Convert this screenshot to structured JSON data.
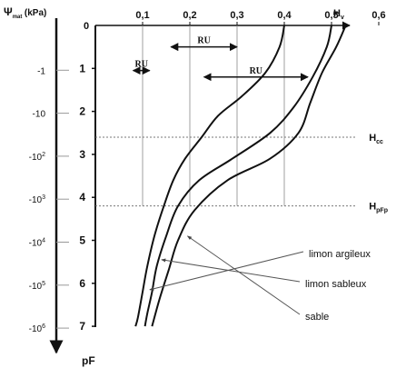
{
  "chart_data": {
    "type": "line",
    "x_axis": {
      "label": "H",
      "label_sub": "v",
      "range": [
        0,
        0.6
      ],
      "ticks": [
        {
          "value": 0.1,
          "label": "0,1"
        },
        {
          "value": 0.2,
          "label": "0,2"
        },
        {
          "value": 0.3,
          "label": "0,3"
        },
        {
          "value": 0.4,
          "label": "0,4"
        },
        {
          "value": 0.5,
          "label": "0,5"
        },
        {
          "value": 0.6,
          "label": "0,6"
        }
      ]
    },
    "y_axis_pf": {
      "label": "pF",
      "origin_label": "0",
      "range": [
        0,
        7
      ],
      "ticks": [
        {
          "value": 1,
          "label": "1"
        },
        {
          "value": 2,
          "label": "2"
        },
        {
          "value": 3,
          "label": "3"
        },
        {
          "value": 4,
          "label": "4"
        },
        {
          "value": 5,
          "label": "5"
        },
        {
          "value": 6,
          "label": "6"
        },
        {
          "value": 7,
          "label": "7"
        }
      ]
    },
    "y_axis_psi": {
      "label_symbol": "Ψ",
      "label_sub": "mat",
      "label_unit": "(kPa)",
      "ticks": [
        {
          "pf": 1,
          "base": "-1",
          "exp": ""
        },
        {
          "pf": 2,
          "base": "-10",
          "exp": ""
        },
        {
          "pf": 3,
          "base": "-10",
          "exp": "2"
        },
        {
          "pf": 4,
          "base": "-10",
          "exp": "3"
        },
        {
          "pf": 5,
          "base": "-10",
          "exp": "4"
        },
        {
          "pf": 6,
          "base": "-10",
          "exp": "5"
        },
        {
          "pf": 7,
          "base": "-10",
          "exp": "6"
        }
      ]
    },
    "series": [
      {
        "name": "limon argileux",
        "points": [
          [
            0.4,
            0.0
          ],
          [
            0.39,
            0.5
          ],
          [
            0.36,
            1.1
          ],
          [
            0.31,
            1.65
          ],
          [
            0.26,
            2.1
          ],
          [
            0.225,
            2.6
          ],
          [
            0.19,
            3.1
          ],
          [
            0.165,
            3.6
          ],
          [
            0.145,
            4.2
          ],
          [
            0.125,
            4.9
          ],
          [
            0.11,
            5.6
          ],
          [
            0.1,
            6.2
          ],
          [
            0.09,
            6.8
          ],
          [
            0.085,
            7.0
          ]
        ]
      },
      {
        "name": "limon sableux",
        "points": [
          [
            0.5,
            0.0
          ],
          [
            0.49,
            0.5
          ],
          [
            0.46,
            1.2
          ],
          [
            0.42,
            1.9
          ],
          [
            0.37,
            2.5
          ],
          [
            0.29,
            3.1
          ],
          [
            0.22,
            3.6
          ],
          [
            0.175,
            4.2
          ],
          [
            0.15,
            4.9
          ],
          [
            0.13,
            5.6
          ],
          [
            0.12,
            6.2
          ],
          [
            0.11,
            6.7
          ],
          [
            0.105,
            7.0
          ]
        ]
      },
      {
        "name": "sable",
        "points": [
          [
            0.53,
            0.0
          ],
          [
            0.51,
            0.5
          ],
          [
            0.48,
            1.1
          ],
          [
            0.455,
            1.8
          ],
          [
            0.43,
            2.5
          ],
          [
            0.37,
            3.1
          ],
          [
            0.28,
            3.6
          ],
          [
            0.21,
            4.3
          ],
          [
            0.175,
            5.0
          ],
          [
            0.155,
            5.7
          ],
          [
            0.135,
            6.4
          ],
          [
            0.12,
            7.0
          ]
        ]
      }
    ],
    "reference_lines": [
      {
        "name": "H",
        "sub": "cc",
        "pf": 2.6
      },
      {
        "name": "H",
        "sub": "pFp",
        "pf": 4.2
      }
    ],
    "annotations": {
      "ru_label": "RU",
      "ru_spans": [
        [
          0.08,
          0.115
        ],
        [
          0.16,
          0.3
        ],
        [
          0.23,
          0.45
        ]
      ],
      "ru_pf": [
        1.05,
        0.5,
        1.2
      ],
      "series_labels": [
        {
          "text": "limon argileux",
          "target": [
            0.115,
            6.15
          ]
        },
        {
          "text": "limon sableux",
          "target": [
            0.14,
            5.45
          ]
        },
        {
          "text": "sable",
          "target": [
            0.195,
            4.9
          ]
        }
      ]
    }
  }
}
